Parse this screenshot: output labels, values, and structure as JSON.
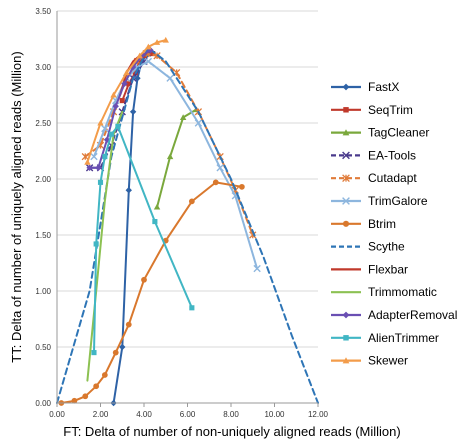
{
  "chart_data": {
    "type": "line",
    "title": "",
    "xlabel": "FT: Delta of number of non-uniquely aligned reads (Million)",
    "ylabel": "TT: Delta of number of uniquely aligned reads (Million)",
    "xlim": [
      0,
      12
    ],
    "ylim": [
      0,
      3.5
    ],
    "x_ticks": [
      "0.00",
      "2.00",
      "4.00",
      "6.00",
      "8.00",
      "10.00",
      "12.00"
    ],
    "y_ticks": [
      "0.00",
      "0.50",
      "1.00",
      "1.50",
      "2.00",
      "2.50",
      "3.00",
      "3.50"
    ],
    "grid": "horizontal",
    "legend_position": "right",
    "series": [
      {
        "name": "FastX",
        "color": "#2E62A6",
        "marker": "diamond",
        "dash": "solid",
        "x": [
          2.6,
          3.0,
          3.3,
          3.5,
          3.7,
          3.9,
          4.1,
          4.3
        ],
        "y": [
          0.0,
          0.5,
          1.9,
          2.6,
          2.9,
          3.05,
          3.1,
          3.12
        ]
      },
      {
        "name": "SeqTrim",
        "color": "#C0392B",
        "marker": "square",
        "dash": "solid",
        "x": [
          3.0,
          3.3,
          3.6,
          3.8,
          4.0,
          4.2,
          4.4
        ],
        "y": [
          2.7,
          2.85,
          2.95,
          3.05,
          3.1,
          3.15,
          3.12
        ]
      },
      {
        "name": "TagCleaner",
        "color": "#7AA83C",
        "marker": "triangle",
        "dash": "solid",
        "x": [
          4.6,
          5.2,
          5.8,
          6.4
        ],
        "y": [
          1.75,
          2.2,
          2.55,
          2.62
        ]
      },
      {
        "name": "EA-Tools",
        "color": "#4A3A8C",
        "marker": "x",
        "dash": "dash",
        "x": [
          1.5,
          2.0,
          2.5,
          3.0,
          3.5,
          4.0
        ],
        "y": [
          2.1,
          2.1,
          2.3,
          2.6,
          2.9,
          3.05
        ]
      },
      {
        "name": "Cutadapt",
        "color": "#E07B39",
        "marker": "star",
        "dash": "dash",
        "x": [
          1.3,
          2.0,
          2.6,
          3.2,
          3.7,
          4.1,
          4.6,
          5.5,
          6.5,
          7.5,
          8.2,
          9.0
        ],
        "y": [
          2.2,
          2.3,
          2.6,
          2.9,
          3.05,
          3.12,
          3.1,
          2.95,
          2.6,
          2.2,
          1.9,
          1.5
        ]
      },
      {
        "name": "TrimGalore",
        "color": "#8DB6DE",
        "marker": "x",
        "dash": "solid",
        "x": [
          1.7,
          2.2,
          2.7,
          3.2,
          3.7,
          4.2,
          5.2,
          6.5,
          7.5,
          8.2,
          9.2
        ],
        "y": [
          2.2,
          2.45,
          2.7,
          2.9,
          3.0,
          3.05,
          2.9,
          2.5,
          2.1,
          1.85,
          1.2
        ]
      },
      {
        "name": "Btrim",
        "color": "#D9782D",
        "marker": "circle",
        "dash": "solid",
        "x": [
          0.2,
          0.8,
          1.3,
          1.8,
          2.2,
          2.7,
          3.3,
          4.0,
          5.0,
          6.2,
          7.3,
          8.5
        ],
        "y": [
          0.0,
          0.02,
          0.06,
          0.15,
          0.25,
          0.45,
          0.7,
          1.1,
          1.45,
          1.8,
          1.97,
          1.93
        ]
      },
      {
        "name": "Scythe",
        "color": "#2E75B6",
        "marker": "none",
        "dash": "dash",
        "x": [
          0.0,
          1.5,
          2.5,
          3.5,
          4.2,
          5.0,
          6.5,
          8.0,
          9.5,
          10.8,
          12.0
        ],
        "y": [
          0.0,
          1.0,
          2.2,
          2.9,
          3.17,
          3.05,
          2.6,
          2.0,
          1.3,
          0.6,
          0.0
        ]
      },
      {
        "name": "Flexbar",
        "color": "#C0392B",
        "marker": "none",
        "dash": "solid",
        "x": [
          2.9,
          3.2,
          3.5,
          3.8,
          4.1
        ],
        "y": [
          2.75,
          2.95,
          3.05,
          3.1,
          3.12
        ]
      },
      {
        "name": "Trimmomatic",
        "color": "#8CC152",
        "marker": "none",
        "dash": "solid",
        "x": [
          1.4,
          1.8,
          2.2,
          2.6,
          3.0
        ],
        "y": [
          0.2,
          1.0,
          1.8,
          2.4,
          2.6
        ]
      },
      {
        "name": "AdapterRemoval",
        "color": "#6A4FB3",
        "marker": "diamond",
        "dash": "solid",
        "x": [
          1.5,
          1.9,
          2.3,
          2.7,
          3.1,
          3.5,
          3.9,
          4.3
        ],
        "y": [
          2.1,
          2.1,
          2.35,
          2.65,
          2.85,
          3.0,
          3.1,
          3.15
        ]
      },
      {
        "name": "AlienTrimmer",
        "color": "#41B6C4",
        "marker": "square",
        "dash": "solid",
        "x": [
          1.7,
          1.8,
          2.0,
          2.2,
          2.5,
          2.8,
          4.5,
          6.2
        ],
        "y": [
          0.45,
          1.42,
          1.97,
          2.2,
          2.4,
          2.47,
          1.62,
          0.85
        ]
      },
      {
        "name": "Skewer",
        "color": "#F39C4A",
        "marker": "triangle",
        "dash": "solid",
        "x": [
          1.4,
          2.0,
          2.6,
          3.2,
          3.8,
          4.2,
          4.6,
          5.0
        ],
        "y": [
          2.15,
          2.5,
          2.75,
          2.95,
          3.1,
          3.18,
          3.22,
          3.24
        ]
      }
    ]
  }
}
